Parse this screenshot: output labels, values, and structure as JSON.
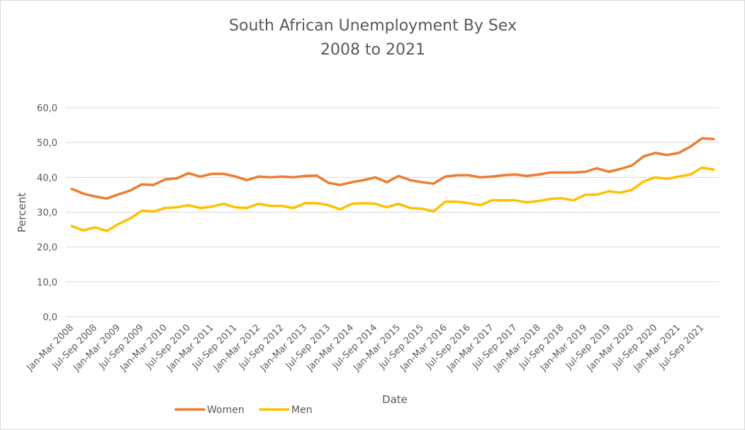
{
  "chart_data": {
    "type": "line",
    "title": "South African Unemployment By Sex",
    "subtitle": "2008 to 2021",
    "xlabel": "Date",
    "ylabel": "Percent",
    "ylim": [
      0,
      60
    ],
    "yticks": [
      "0,0",
      "10,0",
      "20,0",
      "30,0",
      "40,0",
      "50,0",
      "60,0"
    ],
    "grid": true,
    "legend_position": "bottom-left",
    "categories": [
      "Jan-Mar 2008",
      "Apr-Jun 2008",
      "Jul-Sep 2008",
      "Oct-Dec 2008",
      "Jan-Mar 2009",
      "Apr-Jun 2009",
      "Jul-Sep 2009",
      "Oct-Dec 2009",
      "Jan-Mar 2010",
      "Apr-Jun 2010",
      "Jul-Sep 2010",
      "Oct-Dec 2010",
      "Jan-Mar 2011",
      "Apr-Jun 2011",
      "Jul-Sep 2011",
      "Oct-Dec 2011",
      "Jan-Mar 2012",
      "Apr-Jun 2012",
      "Jul-Sep 2012",
      "Oct-Dec 2012",
      "Jan-Mar 2013",
      "Apr-Jun 2013",
      "Jul-Sep 2013",
      "Oct-Dec 2013",
      "Jan-Mar 2014",
      "Apr-Jun 2014",
      "Jul-Sep 2014",
      "Oct-Dec 2014",
      "Jan-Mar 2015",
      "Apr-Jun 2015",
      "Jul-Sep 2015",
      "Oct-Dec 2015",
      "Jan-Mar 2016",
      "Apr-Jun 2016",
      "Jul-Sep 2016",
      "Oct-Dec 2016",
      "Jan-Mar 2017",
      "Apr-Jun 2017",
      "Jul-Sep 2017",
      "Oct-Dec 2017",
      "Jan-Mar 2018",
      "Apr-Jun 2018",
      "Jul-Sep 2018",
      "Oct-Dec 2018",
      "Jan-Mar 2019",
      "Apr-Jun 2019",
      "Jul-Sep 2019",
      "Oct-Dec 2019",
      "Jan-Mar 2020",
      "Apr-Jun 2020",
      "Jul-Sep 2020",
      "Oct-Dec 2020",
      "Jan-Mar 2021",
      "Apr-Jun 2021",
      "Jul-Sep 2021",
      "Oct-Dec 2021"
    ],
    "visible_tick_labels": [
      "Jan-Mar 2008",
      "Jul-Sep 2008",
      "Jan-Mar 2009",
      "Jul-Sep 2009",
      "Jan-Mar 2010",
      "Jul-Sep 2010",
      "Jan-Mar 2011",
      "Jul-Sep 2011",
      "Jan-Mar 2012",
      "Jul-Sep 2012",
      "Jan-Mar 2013",
      "Jul-Sep 2013",
      "Jan-Mar 2014",
      "Jul-Sep 2014",
      "Jan-Mar 2015",
      "Jul-Sep 2015",
      "Jan-Mar 2016",
      "Jul-Sep 2016",
      "Jan-Mar 2017",
      "Jul-Sep 2017",
      "Jan-Mar 2018",
      "Jul-Sep 2018",
      "Jan-Mar 2019",
      "Jul-Sep 2019",
      "Jan-Mar 2020",
      "Jul-Sep 2020",
      "Jan-Mar 2021",
      "Jul-Sep 2021"
    ],
    "series": [
      {
        "name": "Women",
        "color": "#ED7D31",
        "values": [
          36.7,
          35.3,
          34.5,
          33.9,
          35.1,
          36.2,
          38.0,
          37.8,
          39.4,
          39.7,
          41.2,
          40.2,
          41.0,
          41.0,
          40.3,
          39.2,
          40.2,
          40.0,
          40.2,
          40.0,
          40.4,
          40.5,
          38.4,
          37.8,
          38.6,
          39.2,
          40.0,
          38.6,
          40.4,
          39.2,
          38.6,
          38.2,
          40.2,
          40.6,
          40.6,
          40.0,
          40.2,
          40.6,
          40.8,
          40.4,
          40.8,
          41.4,
          41.4,
          41.4,
          41.6,
          42.6,
          41.6,
          42.4,
          43.4,
          46.0,
          47.0,
          46.4,
          47.0,
          48.8,
          51.2,
          51.0
        ]
      },
      {
        "name": "Men",
        "color": "#FFC000",
        "values": [
          26.0,
          24.8,
          25.6,
          24.6,
          26.6,
          28.2,
          30.4,
          30.2,
          31.2,
          31.4,
          32.0,
          31.2,
          31.6,
          32.4,
          31.4,
          31.2,
          32.4,
          31.8,
          31.8,
          31.2,
          32.6,
          32.6,
          32.0,
          30.8,
          32.4,
          32.6,
          32.4,
          31.4,
          32.4,
          31.2,
          31.0,
          30.2,
          33.0,
          33.0,
          32.6,
          32.0,
          33.4,
          33.4,
          33.4,
          32.8,
          33.2,
          33.8,
          34.0,
          33.4,
          35.0,
          35.0,
          36.0,
          35.6,
          36.4,
          38.8,
          40.0,
          39.6,
          40.2,
          40.8,
          42.8,
          42.2
        ]
      }
    ]
  }
}
